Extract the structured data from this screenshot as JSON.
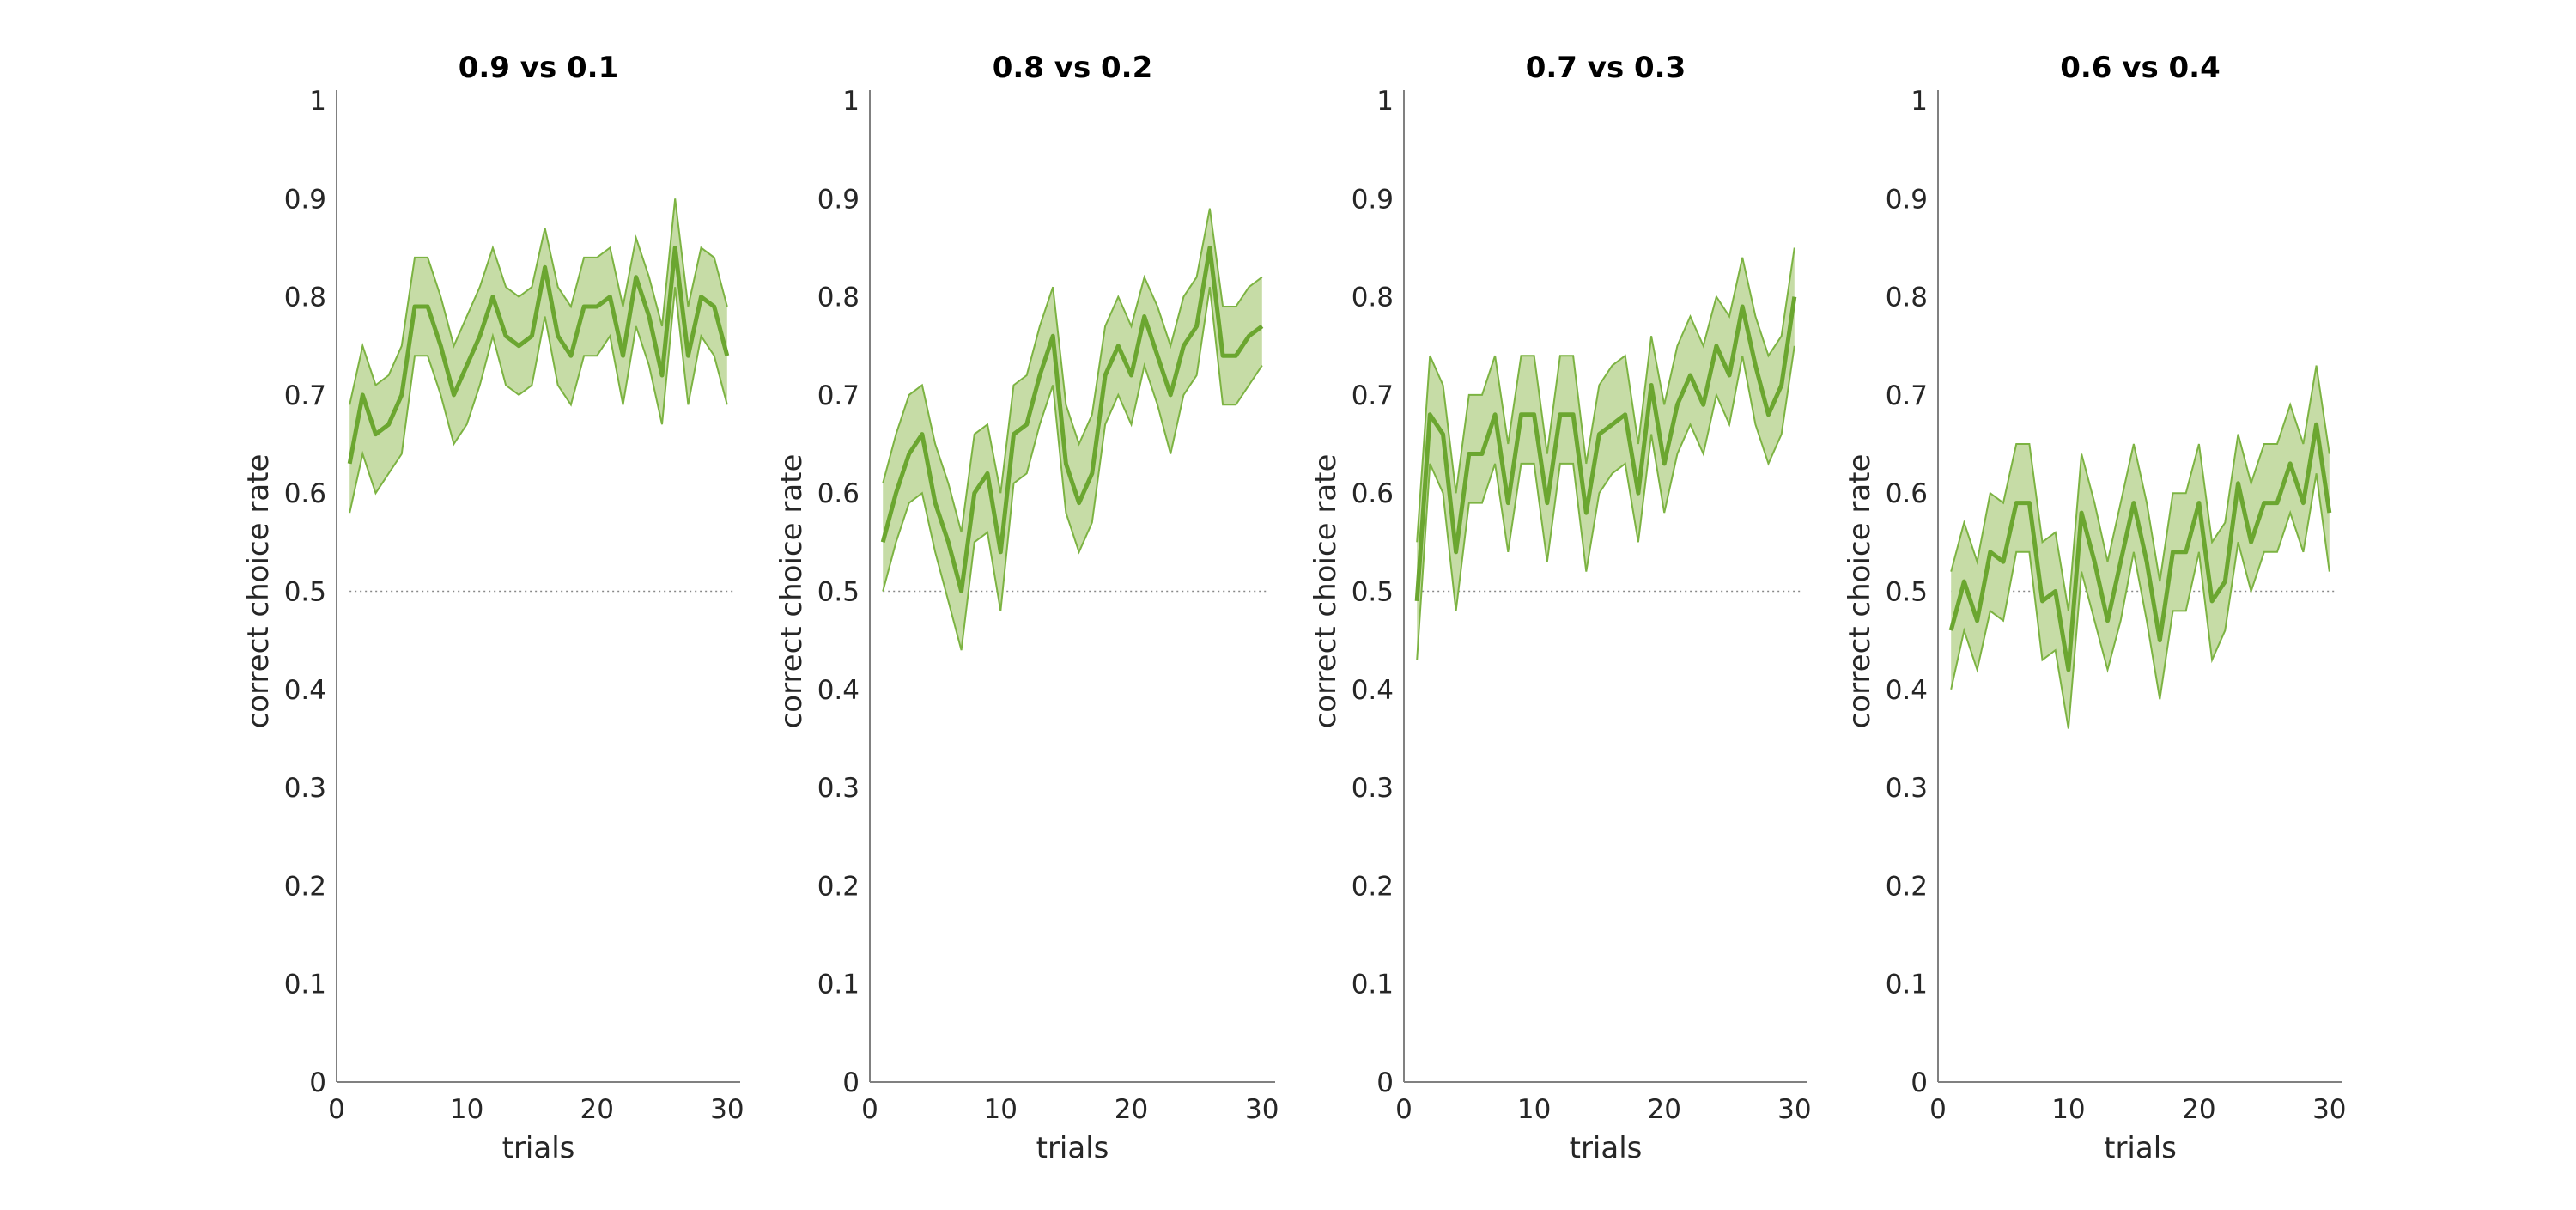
{
  "chart_data": [
    {
      "type": "line",
      "title": "0.9 vs 0.1",
      "xlabel": "trials",
      "ylabel": "correct choice rate",
      "xlim": [
        0,
        31
      ],
      "ylim": [
        0,
        1
      ],
      "xticks": [
        "0",
        "10",
        "20",
        "30"
      ],
      "yticks": [
        "0",
        "0.1",
        "0.2",
        "0.3",
        "0.4",
        "0.5",
        "0.6",
        "0.7",
        "0.8",
        "0.9",
        "1"
      ],
      "reference_line": {
        "y": 0.5,
        "style": "dotted"
      },
      "series": [
        {
          "x": [
            1,
            2,
            3,
            4,
            5,
            6,
            7,
            8,
            9,
            10,
            11,
            12,
            13,
            14,
            15,
            16,
            17,
            18,
            19,
            20,
            21,
            22,
            23,
            24,
            25,
            26,
            27,
            28,
            29,
            30
          ],
          "mean": [
            0.63,
            0.7,
            0.66,
            0.67,
            0.7,
            0.79,
            0.79,
            0.75,
            0.7,
            0.73,
            0.76,
            0.8,
            0.76,
            0.75,
            0.76,
            0.83,
            0.76,
            0.74,
            0.79,
            0.79,
            0.8,
            0.74,
            0.82,
            0.78,
            0.72,
            0.85,
            0.74,
            0.8,
            0.79,
            0.74
          ],
          "upper": [
            0.69,
            0.75,
            0.71,
            0.72,
            0.75,
            0.84,
            0.84,
            0.8,
            0.75,
            0.78,
            0.81,
            0.85,
            0.81,
            0.8,
            0.81,
            0.87,
            0.81,
            0.79,
            0.84,
            0.84,
            0.85,
            0.79,
            0.86,
            0.82,
            0.77,
            0.9,
            0.79,
            0.85,
            0.84,
            0.79
          ],
          "lower": [
            0.58,
            0.64,
            0.6,
            0.62,
            0.64,
            0.74,
            0.74,
            0.7,
            0.65,
            0.67,
            0.71,
            0.76,
            0.71,
            0.7,
            0.71,
            0.78,
            0.71,
            0.69,
            0.74,
            0.74,
            0.76,
            0.69,
            0.77,
            0.73,
            0.67,
            0.81,
            0.69,
            0.76,
            0.74,
            0.69
          ]
        }
      ]
    },
    {
      "type": "line",
      "title": "0.8 vs 0.2",
      "xlabel": "trials",
      "ylabel": "correct choice rate",
      "xlim": [
        0,
        31
      ],
      "ylim": [
        0,
        1
      ],
      "xticks": [
        "0",
        "10",
        "20",
        "30"
      ],
      "yticks": [
        "0",
        "0.1",
        "0.2",
        "0.3",
        "0.4",
        "0.5",
        "0.6",
        "0.7",
        "0.8",
        "0.9",
        "1"
      ],
      "reference_line": {
        "y": 0.5,
        "style": "dotted"
      },
      "series": [
        {
          "x": [
            1,
            2,
            3,
            4,
            5,
            6,
            7,
            8,
            9,
            10,
            11,
            12,
            13,
            14,
            15,
            16,
            17,
            18,
            19,
            20,
            21,
            22,
            23,
            24,
            25,
            26,
            27,
            28,
            29,
            30
          ],
          "mean": [
            0.55,
            0.6,
            0.64,
            0.66,
            0.59,
            0.55,
            0.5,
            0.6,
            0.62,
            0.54,
            0.66,
            0.67,
            0.72,
            0.76,
            0.63,
            0.59,
            0.62,
            0.72,
            0.75,
            0.72,
            0.78,
            0.74,
            0.7,
            0.75,
            0.77,
            0.85,
            0.74,
            0.74,
            0.76,
            0.77
          ],
          "upper": [
            0.61,
            0.66,
            0.7,
            0.71,
            0.65,
            0.61,
            0.56,
            0.66,
            0.67,
            0.6,
            0.71,
            0.72,
            0.77,
            0.81,
            0.69,
            0.65,
            0.68,
            0.77,
            0.8,
            0.77,
            0.82,
            0.79,
            0.75,
            0.8,
            0.82,
            0.89,
            0.79,
            0.79,
            0.81,
            0.82
          ],
          "lower": [
            0.5,
            0.55,
            0.59,
            0.6,
            0.54,
            0.49,
            0.44,
            0.55,
            0.56,
            0.48,
            0.61,
            0.62,
            0.67,
            0.71,
            0.58,
            0.54,
            0.57,
            0.67,
            0.7,
            0.67,
            0.73,
            0.69,
            0.64,
            0.7,
            0.72,
            0.81,
            0.69,
            0.69,
            0.71,
            0.73
          ]
        }
      ]
    },
    {
      "type": "line",
      "title": "0.7 vs 0.3",
      "xlabel": "trials",
      "ylabel": "correct choice rate",
      "xlim": [
        0,
        31
      ],
      "ylim": [
        0,
        1
      ],
      "xticks": [
        "0",
        "10",
        "20",
        "30"
      ],
      "yticks": [
        "0",
        "0.1",
        "0.2",
        "0.3",
        "0.4",
        "0.5",
        "0.6",
        "0.7",
        "0.8",
        "0.9",
        "1"
      ],
      "reference_line": {
        "y": 0.5,
        "style": "dotted"
      },
      "series": [
        {
          "x": [
            1,
            2,
            3,
            4,
            5,
            6,
            7,
            8,
            9,
            10,
            11,
            12,
            13,
            14,
            15,
            16,
            17,
            18,
            19,
            20,
            21,
            22,
            23,
            24,
            25,
            26,
            27,
            28,
            29,
            30
          ],
          "mean": [
            0.49,
            0.68,
            0.66,
            0.54,
            0.64,
            0.64,
            0.68,
            0.59,
            0.68,
            0.68,
            0.59,
            0.68,
            0.68,
            0.58,
            0.66,
            0.67,
            0.68,
            0.6,
            0.71,
            0.63,
            0.69,
            0.72,
            0.69,
            0.75,
            0.72,
            0.79,
            0.73,
            0.68,
            0.71,
            0.8
          ],
          "upper": [
            0.55,
            0.74,
            0.71,
            0.6,
            0.7,
            0.7,
            0.74,
            0.65,
            0.74,
            0.74,
            0.64,
            0.74,
            0.74,
            0.63,
            0.71,
            0.73,
            0.74,
            0.65,
            0.76,
            0.69,
            0.75,
            0.78,
            0.75,
            0.8,
            0.78,
            0.84,
            0.78,
            0.74,
            0.76,
            0.85
          ],
          "lower": [
            0.43,
            0.63,
            0.6,
            0.48,
            0.59,
            0.59,
            0.63,
            0.54,
            0.63,
            0.63,
            0.53,
            0.63,
            0.63,
            0.52,
            0.6,
            0.62,
            0.63,
            0.55,
            0.66,
            0.58,
            0.64,
            0.67,
            0.64,
            0.7,
            0.67,
            0.74,
            0.67,
            0.63,
            0.66,
            0.75
          ]
        }
      ]
    },
    {
      "type": "line",
      "title": "0.6 vs 0.4",
      "xlabel": "trials",
      "ylabel": "correct choice rate",
      "xlim": [
        0,
        31
      ],
      "ylim": [
        0,
        1
      ],
      "xticks": [
        "0",
        "10",
        "20",
        "30"
      ],
      "yticks": [
        "0",
        "0.1",
        "0.2",
        "0.3",
        "0.4",
        "0.5",
        "0.6",
        "0.7",
        "0.8",
        "0.9",
        "1"
      ],
      "reference_line": {
        "y": 0.5,
        "style": "dotted"
      },
      "series": [
        {
          "x": [
            1,
            2,
            3,
            4,
            5,
            6,
            7,
            8,
            9,
            10,
            11,
            12,
            13,
            14,
            15,
            16,
            17,
            18,
            19,
            20,
            21,
            22,
            23,
            24,
            25,
            26,
            27,
            28,
            29,
            30
          ],
          "mean": [
            0.46,
            0.51,
            0.47,
            0.54,
            0.53,
            0.59,
            0.59,
            0.49,
            0.5,
            0.42,
            0.58,
            0.53,
            0.47,
            0.53,
            0.59,
            0.53,
            0.45,
            0.54,
            0.54,
            0.59,
            0.49,
            0.51,
            0.61,
            0.55,
            0.59,
            0.59,
            0.63,
            0.59,
            0.67,
            0.58
          ],
          "upper": [
            0.52,
            0.57,
            0.53,
            0.6,
            0.59,
            0.65,
            0.65,
            0.55,
            0.56,
            0.48,
            0.64,
            0.59,
            0.53,
            0.59,
            0.65,
            0.59,
            0.51,
            0.6,
            0.6,
            0.65,
            0.55,
            0.57,
            0.66,
            0.61,
            0.65,
            0.65,
            0.69,
            0.65,
            0.73,
            0.64
          ],
          "lower": [
            0.4,
            0.46,
            0.42,
            0.48,
            0.47,
            0.54,
            0.54,
            0.43,
            0.44,
            0.36,
            0.52,
            0.47,
            0.42,
            0.47,
            0.54,
            0.47,
            0.39,
            0.48,
            0.48,
            0.54,
            0.43,
            0.46,
            0.55,
            0.5,
            0.54,
            0.54,
            0.58,
            0.54,
            0.62,
            0.52
          ]
        }
      ]
    }
  ],
  "colors": {
    "line": "#6ba630",
    "band_fill": "#c6dca6",
    "band_edge": "#7cb342",
    "axis": "#808080",
    "reference": "#888888",
    "text": "#262626",
    "title": "#000000"
  }
}
